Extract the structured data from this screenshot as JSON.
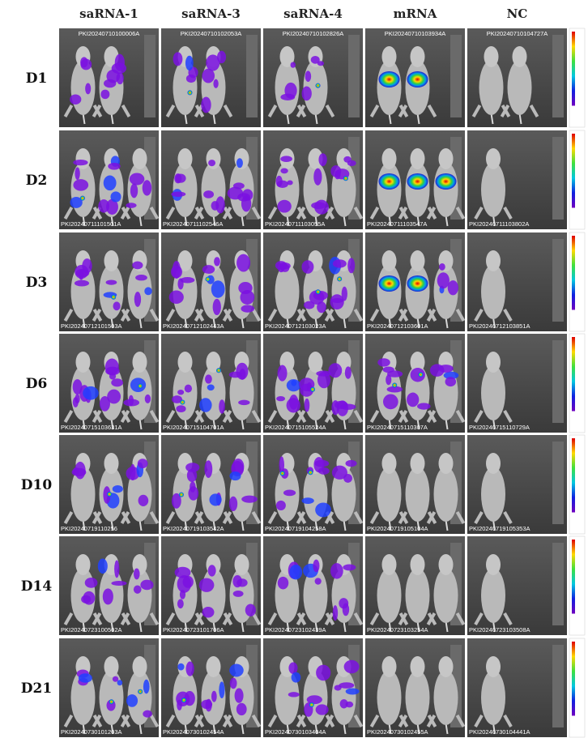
{
  "columns": [
    "saRNA-1",
    "saRNA-3",
    "saRNA-4",
    "mRNA",
    "NC"
  ],
  "rows": [
    {
      "label": "D1",
      "images": [
        "PKI20240710100006A",
        "PKI20240710102053A",
        "PKI20240710102826A",
        "PKI20240710103934A",
        "PKI20240710104727A"
      ]
    },
    {
      "label": "D2",
      "images": [
        "PKI20240711101501A",
        "PKI20240711102546A",
        "PKI20240711103055A",
        "PKI20240711103547A",
        "PKI20240711103802A"
      ]
    },
    {
      "label": "D3",
      "images": [
        "PKI20240712101503A",
        "PKI20240712102443A",
        "PKI20240712103023A",
        "PKI20240712103601A",
        "PKI20240712103851A"
      ]
    },
    {
      "label": "D6",
      "images": [
        "PKI20240715103631A",
        "PKI20240715104701A",
        "PKI20240715105524A",
        "PKI20240715110307A",
        "PKI20240715110729A"
      ]
    },
    {
      "label": "D10",
      "images": [
        "PKI20240719110256",
        "PKI20240719103542A",
        "PKI20240719104258A",
        "PKI20240719105104A",
        "PKI20240719105353A"
      ]
    },
    {
      "label": "D14",
      "images": [
        "PKI20240723100502A",
        "PKI20240723101706A",
        "PKI20240723102439A",
        "PKI20240723103254A",
        "PKI20240723103508A"
      ]
    },
    {
      "label": "D21",
      "images": [
        "PKI20240730101203A",
        "PKI20240730102454A",
        "PKI20240730103404A",
        "PKI20240730102455A",
        "PKI20240730104441A"
      ]
    }
  ]
}
